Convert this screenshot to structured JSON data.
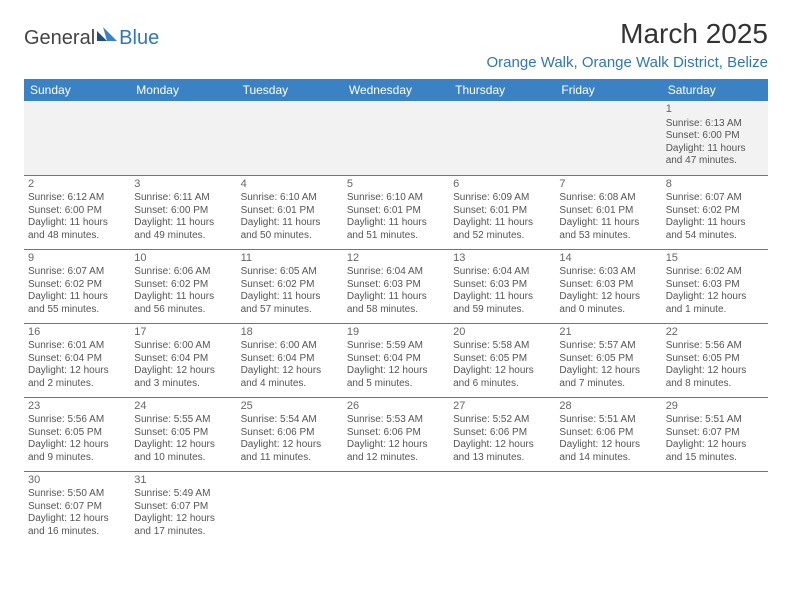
{
  "logo": {
    "word1": "General",
    "word2": "Blue"
  },
  "title": "March 2025",
  "location": "Orange Walk, Orange Walk District, Belize",
  "colors": {
    "header_bg": "#3b82c4",
    "header_text": "#ffffff",
    "accent": "#2f77b9",
    "row_border": "#3b82c4",
    "firstrow_bg": "#f2f2f2",
    "body_text": "#555555"
  },
  "typography": {
    "title_fontsize": 28,
    "location_fontsize": 15,
    "header_fontsize": 12,
    "cell_fontsize": 10,
    "daynum_fontsize": 11
  },
  "days_of_week": [
    "Sunday",
    "Monday",
    "Tuesday",
    "Wednesday",
    "Thursday",
    "Friday",
    "Saturday"
  ],
  "weeks": [
    [
      null,
      null,
      null,
      null,
      null,
      null,
      {
        "n": "1",
        "sunrise": "Sunrise: 6:13 AM",
        "sunset": "Sunset: 6:00 PM",
        "daylight": "Daylight: 11 hours and 47 minutes."
      }
    ],
    [
      {
        "n": "2",
        "sunrise": "Sunrise: 6:12 AM",
        "sunset": "Sunset: 6:00 PM",
        "daylight": "Daylight: 11 hours and 48 minutes."
      },
      {
        "n": "3",
        "sunrise": "Sunrise: 6:11 AM",
        "sunset": "Sunset: 6:00 PM",
        "daylight": "Daylight: 11 hours and 49 minutes."
      },
      {
        "n": "4",
        "sunrise": "Sunrise: 6:10 AM",
        "sunset": "Sunset: 6:01 PM",
        "daylight": "Daylight: 11 hours and 50 minutes."
      },
      {
        "n": "5",
        "sunrise": "Sunrise: 6:10 AM",
        "sunset": "Sunset: 6:01 PM",
        "daylight": "Daylight: 11 hours and 51 minutes."
      },
      {
        "n": "6",
        "sunrise": "Sunrise: 6:09 AM",
        "sunset": "Sunset: 6:01 PM",
        "daylight": "Daylight: 11 hours and 52 minutes."
      },
      {
        "n": "7",
        "sunrise": "Sunrise: 6:08 AM",
        "sunset": "Sunset: 6:01 PM",
        "daylight": "Daylight: 11 hours and 53 minutes."
      },
      {
        "n": "8",
        "sunrise": "Sunrise: 6:07 AM",
        "sunset": "Sunset: 6:02 PM",
        "daylight": "Daylight: 11 hours and 54 minutes."
      }
    ],
    [
      {
        "n": "9",
        "sunrise": "Sunrise: 6:07 AM",
        "sunset": "Sunset: 6:02 PM",
        "daylight": "Daylight: 11 hours and 55 minutes."
      },
      {
        "n": "10",
        "sunrise": "Sunrise: 6:06 AM",
        "sunset": "Sunset: 6:02 PM",
        "daylight": "Daylight: 11 hours and 56 minutes."
      },
      {
        "n": "11",
        "sunrise": "Sunrise: 6:05 AM",
        "sunset": "Sunset: 6:02 PM",
        "daylight": "Daylight: 11 hours and 57 minutes."
      },
      {
        "n": "12",
        "sunrise": "Sunrise: 6:04 AM",
        "sunset": "Sunset: 6:03 PM",
        "daylight": "Daylight: 11 hours and 58 minutes."
      },
      {
        "n": "13",
        "sunrise": "Sunrise: 6:04 AM",
        "sunset": "Sunset: 6:03 PM",
        "daylight": "Daylight: 11 hours and 59 minutes."
      },
      {
        "n": "14",
        "sunrise": "Sunrise: 6:03 AM",
        "sunset": "Sunset: 6:03 PM",
        "daylight": "Daylight: 12 hours and 0 minutes."
      },
      {
        "n": "15",
        "sunrise": "Sunrise: 6:02 AM",
        "sunset": "Sunset: 6:03 PM",
        "daylight": "Daylight: 12 hours and 1 minute."
      }
    ],
    [
      {
        "n": "16",
        "sunrise": "Sunrise: 6:01 AM",
        "sunset": "Sunset: 6:04 PM",
        "daylight": "Daylight: 12 hours and 2 minutes."
      },
      {
        "n": "17",
        "sunrise": "Sunrise: 6:00 AM",
        "sunset": "Sunset: 6:04 PM",
        "daylight": "Daylight: 12 hours and 3 minutes."
      },
      {
        "n": "18",
        "sunrise": "Sunrise: 6:00 AM",
        "sunset": "Sunset: 6:04 PM",
        "daylight": "Daylight: 12 hours and 4 minutes."
      },
      {
        "n": "19",
        "sunrise": "Sunrise: 5:59 AM",
        "sunset": "Sunset: 6:04 PM",
        "daylight": "Daylight: 12 hours and 5 minutes."
      },
      {
        "n": "20",
        "sunrise": "Sunrise: 5:58 AM",
        "sunset": "Sunset: 6:05 PM",
        "daylight": "Daylight: 12 hours and 6 minutes."
      },
      {
        "n": "21",
        "sunrise": "Sunrise: 5:57 AM",
        "sunset": "Sunset: 6:05 PM",
        "daylight": "Daylight: 12 hours and 7 minutes."
      },
      {
        "n": "22",
        "sunrise": "Sunrise: 5:56 AM",
        "sunset": "Sunset: 6:05 PM",
        "daylight": "Daylight: 12 hours and 8 minutes."
      }
    ],
    [
      {
        "n": "23",
        "sunrise": "Sunrise: 5:56 AM",
        "sunset": "Sunset: 6:05 PM",
        "daylight": "Daylight: 12 hours and 9 minutes."
      },
      {
        "n": "24",
        "sunrise": "Sunrise: 5:55 AM",
        "sunset": "Sunset: 6:05 PM",
        "daylight": "Daylight: 12 hours and 10 minutes."
      },
      {
        "n": "25",
        "sunrise": "Sunrise: 5:54 AM",
        "sunset": "Sunset: 6:06 PM",
        "daylight": "Daylight: 12 hours and 11 minutes."
      },
      {
        "n": "26",
        "sunrise": "Sunrise: 5:53 AM",
        "sunset": "Sunset: 6:06 PM",
        "daylight": "Daylight: 12 hours and 12 minutes."
      },
      {
        "n": "27",
        "sunrise": "Sunrise: 5:52 AM",
        "sunset": "Sunset: 6:06 PM",
        "daylight": "Daylight: 12 hours and 13 minutes."
      },
      {
        "n": "28",
        "sunrise": "Sunrise: 5:51 AM",
        "sunset": "Sunset: 6:06 PM",
        "daylight": "Daylight: 12 hours and 14 minutes."
      },
      {
        "n": "29",
        "sunrise": "Sunrise: 5:51 AM",
        "sunset": "Sunset: 6:07 PM",
        "daylight": "Daylight: 12 hours and 15 minutes."
      }
    ],
    [
      {
        "n": "30",
        "sunrise": "Sunrise: 5:50 AM",
        "sunset": "Sunset: 6:07 PM",
        "daylight": "Daylight: 12 hours and 16 minutes."
      },
      {
        "n": "31",
        "sunrise": "Sunrise: 5:49 AM",
        "sunset": "Sunset: 6:07 PM",
        "daylight": "Daylight: 12 hours and 17 minutes."
      },
      null,
      null,
      null,
      null,
      null
    ]
  ]
}
